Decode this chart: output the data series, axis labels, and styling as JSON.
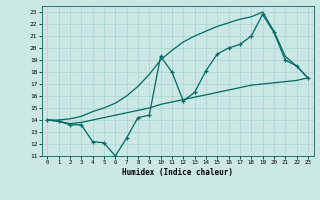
{
  "xlabel": "Humidex (Indice chaleur)",
  "xlim": [
    -0.5,
    23.5
  ],
  "ylim": [
    11,
    23.5
  ],
  "yticks": [
    11,
    12,
    13,
    14,
    15,
    16,
    17,
    18,
    19,
    20,
    21,
    22,
    23
  ],
  "xticks": [
    0,
    1,
    2,
    3,
    4,
    5,
    6,
    7,
    8,
    9,
    10,
    11,
    12,
    13,
    14,
    15,
    16,
    17,
    18,
    19,
    20,
    21,
    22,
    23
  ],
  "bg_color": "#cce8e5",
  "grid_color": "#a8d4d0",
  "line_color": "#006868",
  "line1_x": [
    0,
    1,
    2,
    3,
    4,
    5,
    6,
    7,
    8,
    9,
    10,
    11,
    12,
    13,
    14,
    15,
    16,
    17,
    18,
    19,
    20,
    21,
    22,
    23
  ],
  "line1_y": [
    14.0,
    13.9,
    13.6,
    13.6,
    12.2,
    12.1,
    11.0,
    12.5,
    14.2,
    14.4,
    19.3,
    18.0,
    15.6,
    16.3,
    18.1,
    19.5,
    20.0,
    20.3,
    21.0,
    22.8,
    21.3,
    19.0,
    18.5,
    17.5
  ],
  "line2_x": [
    0,
    1,
    2,
    3,
    4,
    5,
    6,
    7,
    8,
    9,
    10,
    11,
    12,
    13,
    14,
    15,
    16,
    17,
    18,
    19,
    20,
    21,
    22,
    23
  ],
  "line2_y": [
    14.0,
    13.9,
    13.7,
    13.8,
    14.0,
    14.2,
    14.4,
    14.6,
    14.8,
    15.0,
    15.3,
    15.5,
    15.7,
    15.9,
    16.1,
    16.3,
    16.5,
    16.7,
    16.9,
    17.0,
    17.1,
    17.2,
    17.3,
    17.5
  ],
  "line3_x": [
    0,
    1,
    2,
    3,
    4,
    5,
    6,
    7,
    8,
    9,
    10,
    11,
    12,
    13,
    14,
    15,
    16,
    17,
    18,
    19,
    20,
    21,
    22,
    23
  ],
  "line3_y": [
    14.0,
    14.0,
    14.1,
    14.3,
    14.7,
    15.0,
    15.4,
    16.0,
    16.8,
    17.8,
    19.0,
    19.8,
    20.5,
    21.0,
    21.4,
    21.8,
    22.1,
    22.4,
    22.6,
    23.0,
    21.4,
    19.3,
    18.5,
    17.5
  ]
}
